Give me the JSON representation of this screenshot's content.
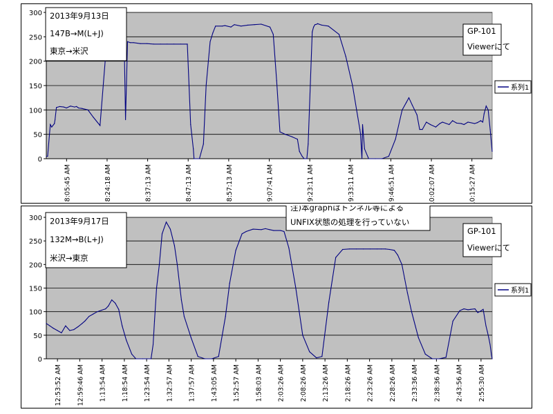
{
  "chart_data": [
    {
      "type": "line",
      "ylim": [
        0,
        300
      ],
      "y_ticks": [
        0,
        50,
        100,
        150,
        200,
        250,
        300
      ],
      "grid": true,
      "plot_background": "#c0c0c0",
      "line_color": "#000080",
      "legend": {
        "entries": [
          "系列1"
        ],
        "placement": "right"
      },
      "info_box": [
        "2013年9月13日",
        "147B→M(L+J)",
        "東京→米沢"
      ],
      "note_box": [
        "GP-101",
        "Viewerにて"
      ],
      "x_tick_labels": [
        "8:05:45 AM",
        "8:24:18 AM",
        "8:37:13 AM",
        "8:47:13 AM",
        "8:57:13 AM",
        "9:07:41 AM",
        "9:23:11 AM",
        "9:33:11 AM",
        "9:46:51 AM",
        "10:02:07 AM",
        "10:15:27 AM"
      ],
      "series": [
        {
          "x": [
            0,
            2,
            6,
            8,
            12,
            13,
            15,
            20,
            26,
            30,
            36,
            42,
            45,
            48,
            53,
            62,
            70,
            80,
            90,
            100,
            110,
            116,
            118,
            121,
            125,
            130,
            140,
            150,
            160,
            170,
            180,
            190,
            200,
            210,
            215,
            219,
            220,
            228,
            234,
            238,
            244,
            248,
            252,
            262,
            266,
            275,
            280,
            290,
            300,
            310,
            320,
            333,
            338,
            343,
            348,
            356,
            366,
            374,
            377,
            381,
            384,
            386,
            388,
            390,
            396,
            398,
            400,
            403,
            404,
            410,
            420,
            436,
            446,
            456,
            467,
            468,
            470,
            471,
            474,
            480,
            490,
            500,
            510,
            520,
            530,
            536,
            540,
            545,
            552,
            556,
            560,
            566,
            572,
            580,
            586,
            590,
            600,
            605,
            611,
            618,
            622,
            628,
            638,
            642,
            647,
            650,
            652,
            655,
            658,
            661,
            664
          ],
          "y": [
            5,
            5,
            70,
            65,
            72,
            80,
            105,
            107,
            106,
            104,
            108,
            106,
            107,
            104,
            103,
            100,
            85,
            68,
            240,
            238,
            238,
            237,
            80,
            240,
            238,
            238,
            236,
            236,
            235,
            235,
            235,
            235,
            235,
            235,
            70,
            20,
            0,
            0,
            30,
            150,
            240,
            258,
            272,
            272,
            273,
            270,
            275,
            272,
            274,
            275,
            276,
            270,
            255,
            160,
            55,
            50,
            45,
            40,
            15,
            5,
            0,
            0,
            0,
            30,
            260,
            270,
            275,
            276,
            277,
            274,
            272,
            255,
            210,
            150,
            60,
            50,
            0,
            70,
            20,
            0,
            0,
            0,
            5,
            40,
            100,
            115,
            125,
            110,
            90,
            60,
            60,
            75,
            70,
            65,
            72,
            75,
            70,
            78,
            73,
            72,
            70,
            75,
            72,
            74,
            78,
            75,
            92,
            108,
            100,
            60,
            15
          ]
        }
      ]
    },
    {
      "type": "line",
      "ylim": [
        0,
        300
      ],
      "y_ticks": [
        0,
        50,
        100,
        150,
        200,
        250,
        300
      ],
      "grid": true,
      "plot_background": "#c0c0c0",
      "line_color": "#000080",
      "legend": {
        "entries": [
          "系列1"
        ],
        "placement": "right"
      },
      "info_box": [
        "2013年9月17日",
        "132M→B(L+J)",
        "米沢→東京"
      ],
      "note_box": [
        "GP-101",
        "Viewerにて"
      ],
      "annotation": [
        "注)本graphはトンネル等による",
        "UNFIX状態の処理を行っていない"
      ],
      "x_tick_labels": [
        "12:53:52 AM",
        "12:59:46 AM",
        "1:13:54 AM",
        "1:18:54 AM",
        "1:23:54 AM",
        "1:32:57 AM",
        "1:37:57 AM",
        "1:43:05 AM",
        "1:52:57 AM",
        "1:58:03 AM",
        "2:03:26 AM",
        "2:08:26 AM",
        "2:13:26 AM",
        "2:18:26 AM",
        "2:23:26 AM",
        "2:28:26 AM",
        "2:33:36 AM",
        "2:38:36 AM",
        "2:43:56 AM",
        "2:55:30 AM"
      ],
      "series": [
        {
          "x": [
            0,
            5,
            10,
            16,
            22,
            28,
            34,
            40,
            46,
            52,
            56,
            62,
            68,
            74,
            80,
            86,
            90,
            95,
            100,
            105,
            110,
            116,
            124,
            130,
            140,
            146,
            152,
            155,
            157,
            160,
            164,
            168,
            174,
            180,
            186,
            190,
            196,
            200,
            210,
            220,
            230,
            240,
            250,
            260,
            266,
            275,
            284,
            290,
            300,
            312,
            318,
            324,
            330,
            340,
            345,
            352,
            362,
            372,
            382,
            392,
            400,
            410,
            420,
            430,
            440,
            450,
            460,
            470,
            480,
            486,
            492,
            498,
            505,
            510,
            516,
            520,
            524,
            530,
            540,
            550,
            560,
            570,
            580,
            590,
            600,
            606,
            612,
            616,
            622,
            626,
            630,
            634,
            638,
            640,
            642,
            644,
            646,
            647
          ],
          "y": [
            75,
            70,
            65,
            60,
            55,
            70,
            60,
            62,
            68,
            75,
            80,
            90,
            95,
            100,
            103,
            106,
            112,
            125,
            118,
            105,
            70,
            40,
            10,
            0,
            0,
            0,
            0,
            30,
            80,
            150,
            200,
            265,
            290,
            275,
            240,
            200,
            125,
            90,
            45,
            5,
            0,
            0,
            5,
            90,
            160,
            230,
            265,
            270,
            275,
            274,
            276,
            274,
            272,
            272,
            270,
            235,
            150,
            50,
            15,
            2,
            5,
            120,
            215,
            232,
            233,
            233,
            233,
            233,
            233,
            233,
            233,
            232,
            230,
            220,
            200,
            170,
            140,
            100,
            45,
            10,
            0,
            0,
            3,
            80,
            102,
            106,
            104,
            105,
            106,
            98,
            101,
            105,
            70,
            58,
            45,
            30,
            8,
            0
          ]
        }
      ]
    }
  ]
}
